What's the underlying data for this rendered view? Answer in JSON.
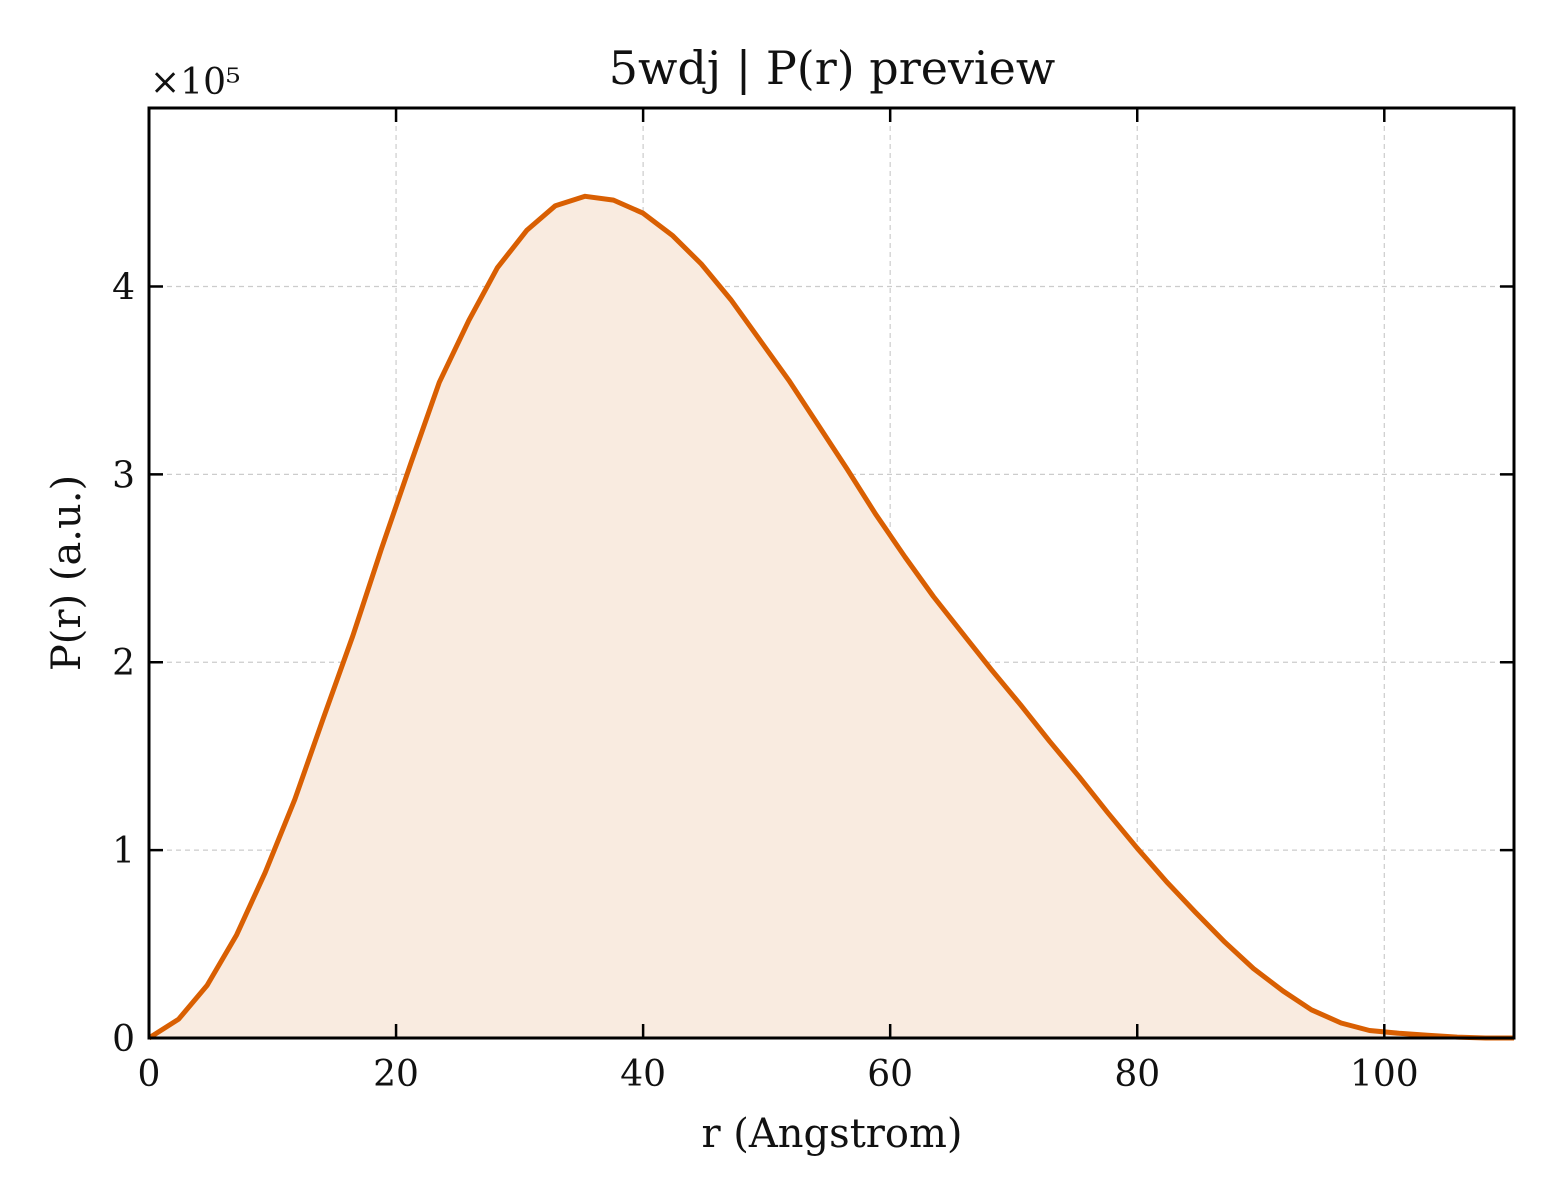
{
  "colors": {
    "line": "#d95f02",
    "fill": "#f9ebe0",
    "grid": "#cccccc"
  },
  "chart_data": {
    "type": "area",
    "title": "5wdj | P(r) preview",
    "xlabel": "r (Angstrom)",
    "ylabel": "P(r) (a.u.)",
    "y_multiplier": "×10⁵",
    "xlim": [
      0,
      110.5
    ],
    "ylim": [
      0,
      4.95
    ],
    "grid": true,
    "x_ticks": [
      0,
      20,
      40,
      60,
      80,
      100
    ],
    "x_tick_labels": [
      "0",
      "20",
      "40",
      "60",
      "80",
      "100"
    ],
    "y_ticks": [
      0,
      1,
      2,
      3,
      4
    ],
    "y_tick_labels": [
      "0",
      "1",
      "2",
      "3",
      "4"
    ],
    "series": [
      {
        "x": [
          0,
          2.4,
          4.7,
          7.1,
          9.4,
          11.8,
          14.1,
          16.5,
          18.8,
          21.2,
          23.5,
          25.9,
          28.2,
          30.6,
          32.9,
          35.3,
          37.6,
          40.0,
          42.4,
          44.7,
          47.1,
          49.4,
          51.8,
          54.1,
          56.5,
          58.8,
          61.2,
          63.5,
          65.9,
          68.2,
          70.6,
          72.9,
          75.3,
          77.6,
          80.0,
          82.4,
          84.7,
          87.1,
          89.4,
          91.8,
          94.1,
          96.5,
          98.8,
          101.2,
          103.5,
          105.9,
          108.2,
          110.5
        ],
        "y": [
          0,
          0.1,
          0.28,
          0.55,
          0.88,
          1.27,
          1.7,
          2.14,
          2.6,
          3.06,
          3.49,
          3.82,
          4.1,
          4.3,
          4.43,
          4.48,
          4.46,
          4.39,
          4.27,
          4.12,
          3.93,
          3.72,
          3.5,
          3.27,
          3.03,
          2.79,
          2.56,
          2.35,
          2.15,
          1.96,
          1.77,
          1.58,
          1.39,
          1.2,
          1.01,
          0.83,
          0.67,
          0.51,
          0.37,
          0.25,
          0.15,
          0.08,
          0.04,
          0.025,
          0.015,
          0.005,
          0,
          0
        ]
      }
    ]
  }
}
